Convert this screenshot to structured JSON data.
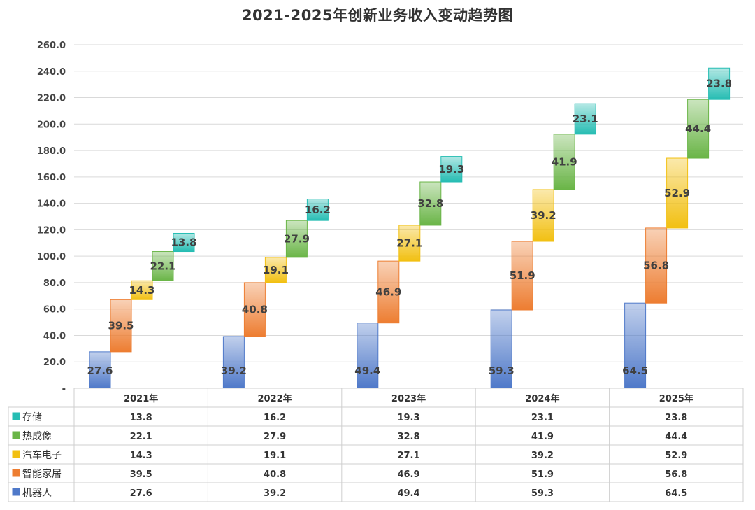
{
  "chart_data": {
    "type": "bar",
    "stacked": true,
    "style": "waterfall-staggered",
    "title": "2021-2025年创新业务收入变动趋势图",
    "categories": [
      "2021年",
      "2022年",
      "2023年",
      "2024年",
      "2025年"
    ],
    "ylim": [
      0,
      260
    ],
    "yticks": [
      "-",
      "20.0",
      "40.0",
      "60.0",
      "80.0",
      "100.0",
      "120.0",
      "140.0",
      "160.0",
      "180.0",
      "200.0",
      "220.0",
      "240.0",
      "260.0"
    ],
    "grid": true,
    "legend": "data-table-left",
    "series": [
      {
        "name": "机器人",
        "color": "#4f79c9",
        "values": [
          27.6,
          39.2,
          49.4,
          59.3,
          64.5
        ]
      },
      {
        "name": "智能家居",
        "color": "#ed7d31",
        "values": [
          39.5,
          40.8,
          46.9,
          51.9,
          56.8
        ]
      },
      {
        "name": "汽车电子",
        "color": "#f2c012",
        "values": [
          14.3,
          19.1,
          27.1,
          39.2,
          52.9
        ]
      },
      {
        "name": "热成像",
        "color": "#6ab547",
        "values": [
          22.1,
          27.9,
          32.8,
          41.9,
          44.4
        ]
      },
      {
        "name": "存储",
        "color": "#26bdb3",
        "values": [
          13.8,
          16.2,
          19.3,
          23.1,
          23.8
        ]
      }
    ],
    "table_labels": {
      "机器人": [
        "27.6",
        "39.2",
        "49.4",
        "59.3",
        "64.5"
      ],
      "智能家居": [
        "39.5",
        "40.8",
        "46.9",
        "51.9",
        "56.8"
      ],
      "汽车电子": [
        "14.3",
        "19.1",
        "27.1",
        "39.2",
        "52.9"
      ],
      "热成像": [
        "22.1",
        "27.9",
        "32.8",
        "41.9",
        "44.4"
      ],
      "存储": [
        "13.8",
        "16.2",
        "19.3",
        "23.1",
        "23.8"
      ]
    }
  }
}
